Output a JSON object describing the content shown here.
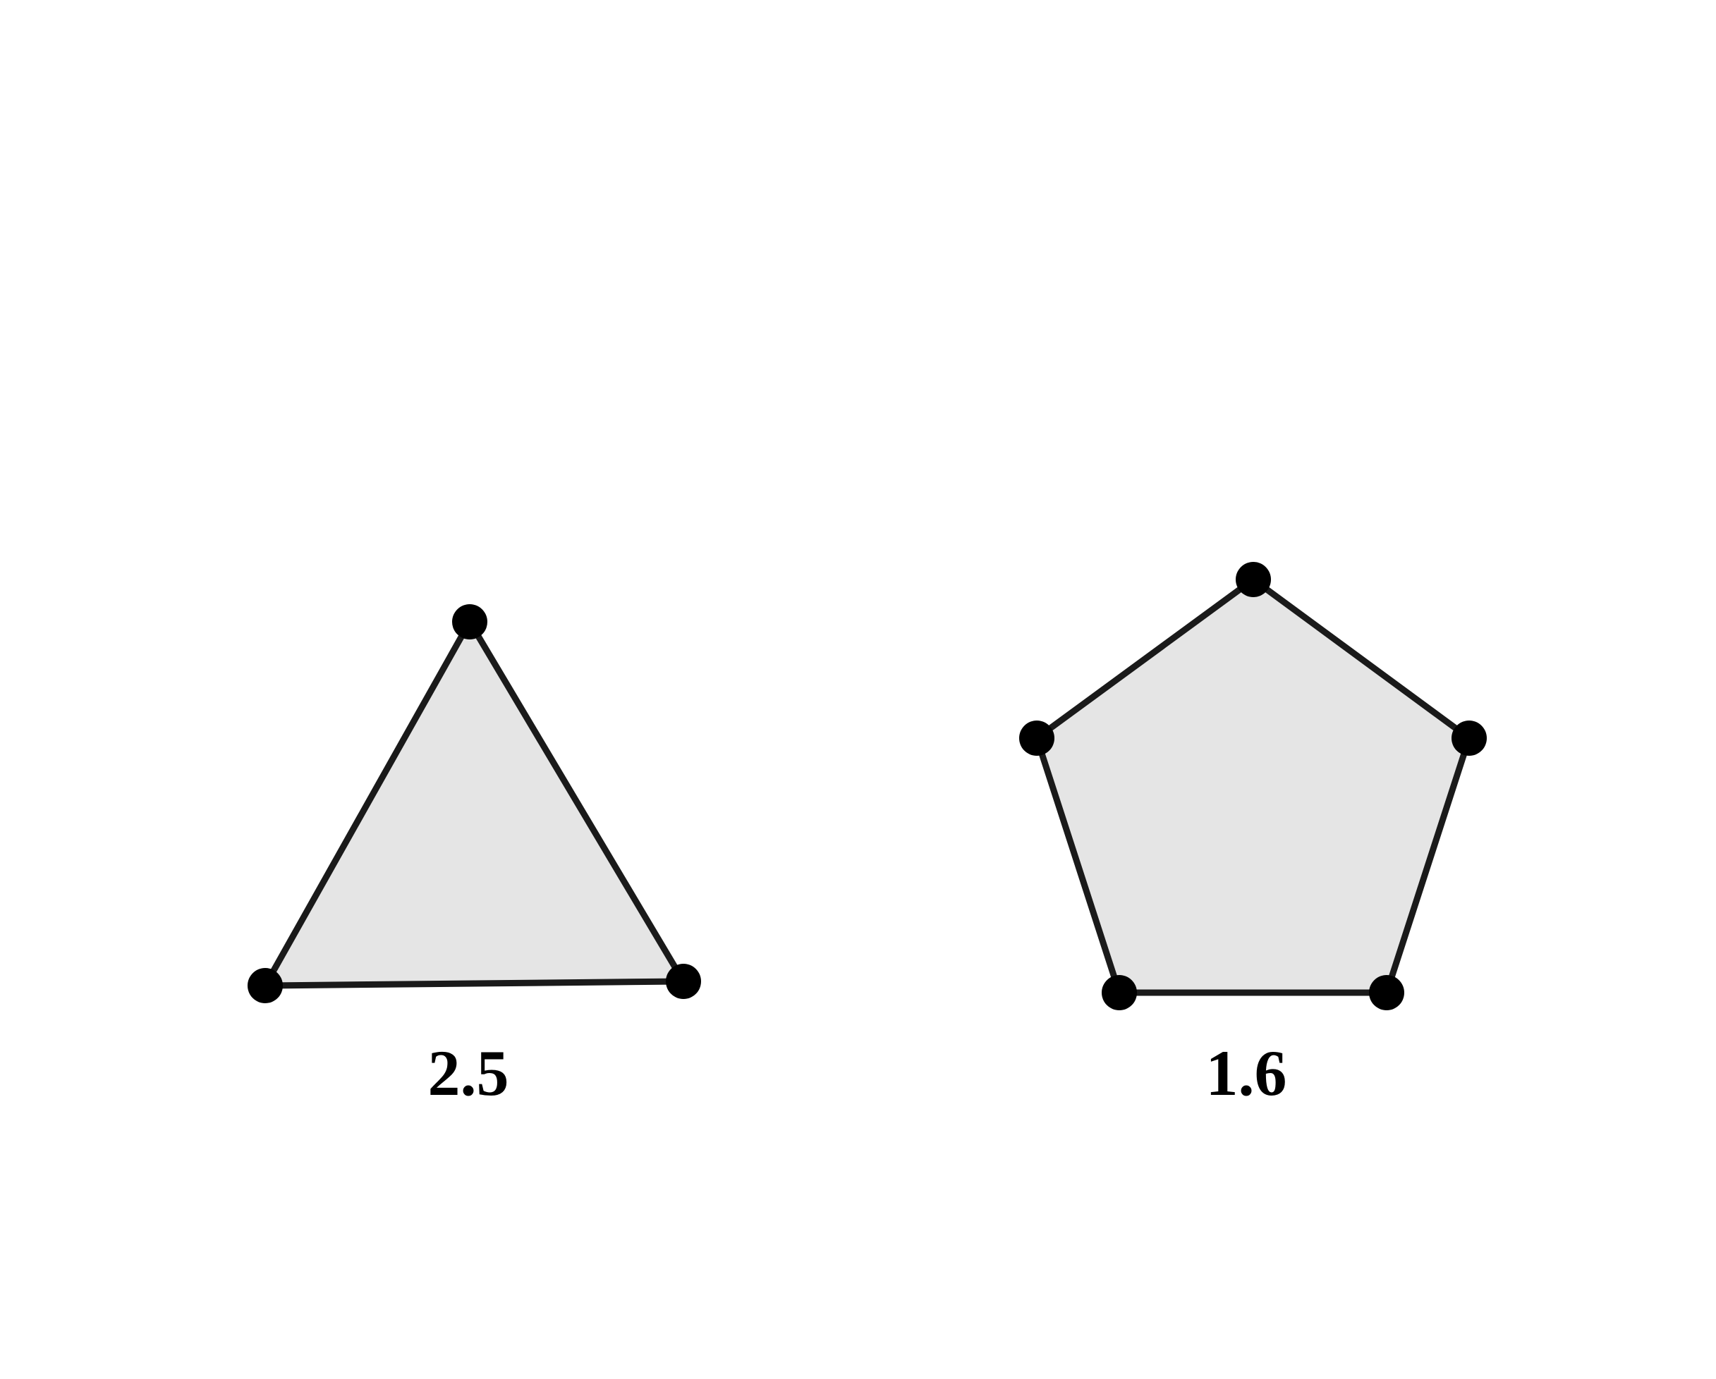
{
  "figure": {
    "shapes": [
      {
        "id": "triangle",
        "kind": "triangle",
        "label": "2.5",
        "vertex_count": 3
      },
      {
        "id": "pentagon",
        "kind": "pentagon",
        "label": "1.6",
        "vertex_count": 5
      }
    ],
    "colors": {
      "fill": "#e5e5e5",
      "stroke": "#1a1a1a",
      "vertex": "#000000",
      "label": "#000000"
    }
  }
}
